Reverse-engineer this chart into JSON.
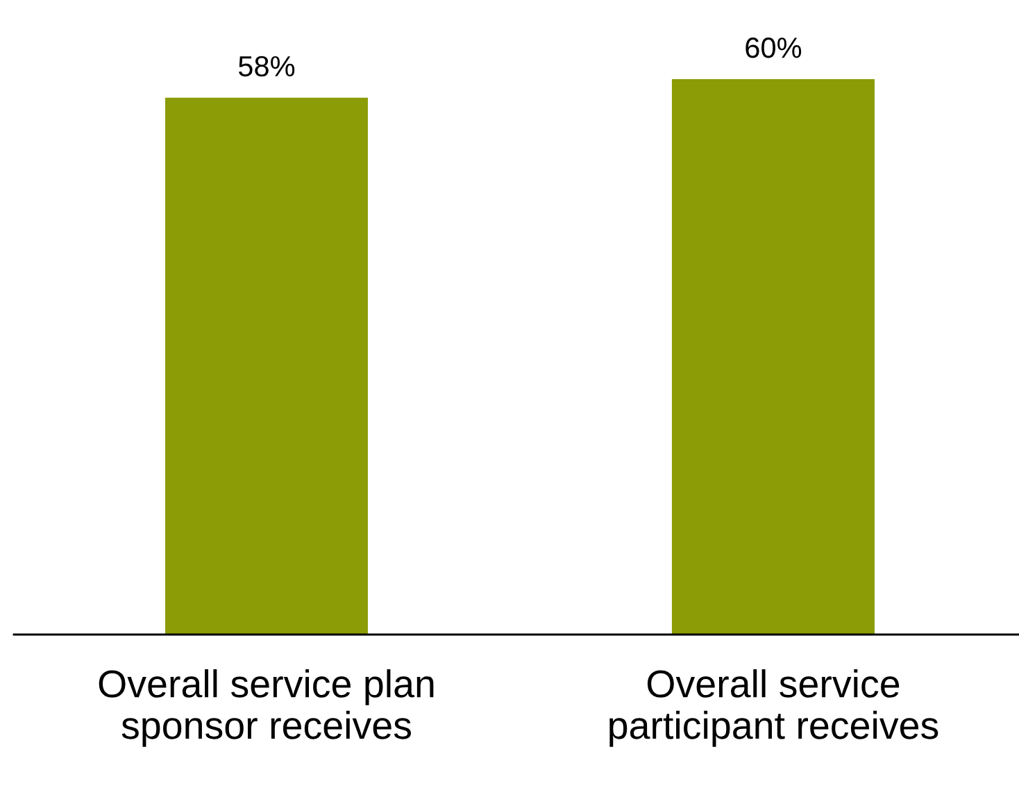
{
  "chart_data": {
    "type": "bar",
    "categories": [
      "Overall service plan\nsponsor receives",
      "Overall service\nparticipant receives"
    ],
    "values": [
      58,
      60
    ],
    "value_labels": [
      "58%",
      "60%"
    ],
    "color": "#8b9c06",
    "grid": false,
    "legend": false
  }
}
